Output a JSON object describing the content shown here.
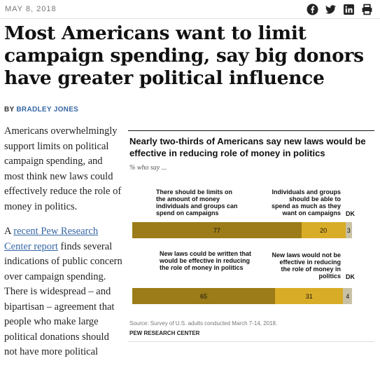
{
  "header": {
    "date": "MAY 8, 2018",
    "share_icons": [
      "facebook-icon",
      "twitter-icon",
      "linkedin-icon",
      "print-icon"
    ]
  },
  "article": {
    "title": "Most Americans want to limit campaign spending, say big donors have greater political influence",
    "byline_prefix": "BY",
    "author": "BRADLEY JONES",
    "p1": "Americans overwhelmingly support limits on political campaign spending, and most think new laws could effectively reduce the role of money in politics.",
    "p2_prefix": "A",
    "p2_link": "recent Pew Research Center report",
    "p2_rest": "finds several indications of public concern over campaign spending. There is widespread – and bipartisan – agreement that people who make large political donations should not have more political"
  },
  "chart_data": {
    "type": "bar",
    "title": "Nearly two-thirds of Americans say new laws would be effective in reducing role of money in politics",
    "subtitle": "% who say ...",
    "colors": {
      "primary": "#9c7c18",
      "secondary": "#d9ac27",
      "dk": "#c8c1a5"
    },
    "series": [
      {
        "left_label": "There should be limits on the amount of money individuals and groups can spend on campaigns",
        "right_label": "Individuals and groups should be able to spend as much as they want on campaigns",
        "dk_label": "DK",
        "values": [
          77,
          20,
          3
        ]
      },
      {
        "left_label": "New laws could be written that would be effective in reducing the role of money in politics",
        "right_label": "New laws would not be effective in reducing the role of money in politics",
        "dk_label": "DK",
        "values": [
          65,
          31,
          4
        ]
      }
    ],
    "source": "Source: Survey of U.S. adults conducted March 7-14, 2018.",
    "credit": "PEW RESEARCH CENTER"
  }
}
